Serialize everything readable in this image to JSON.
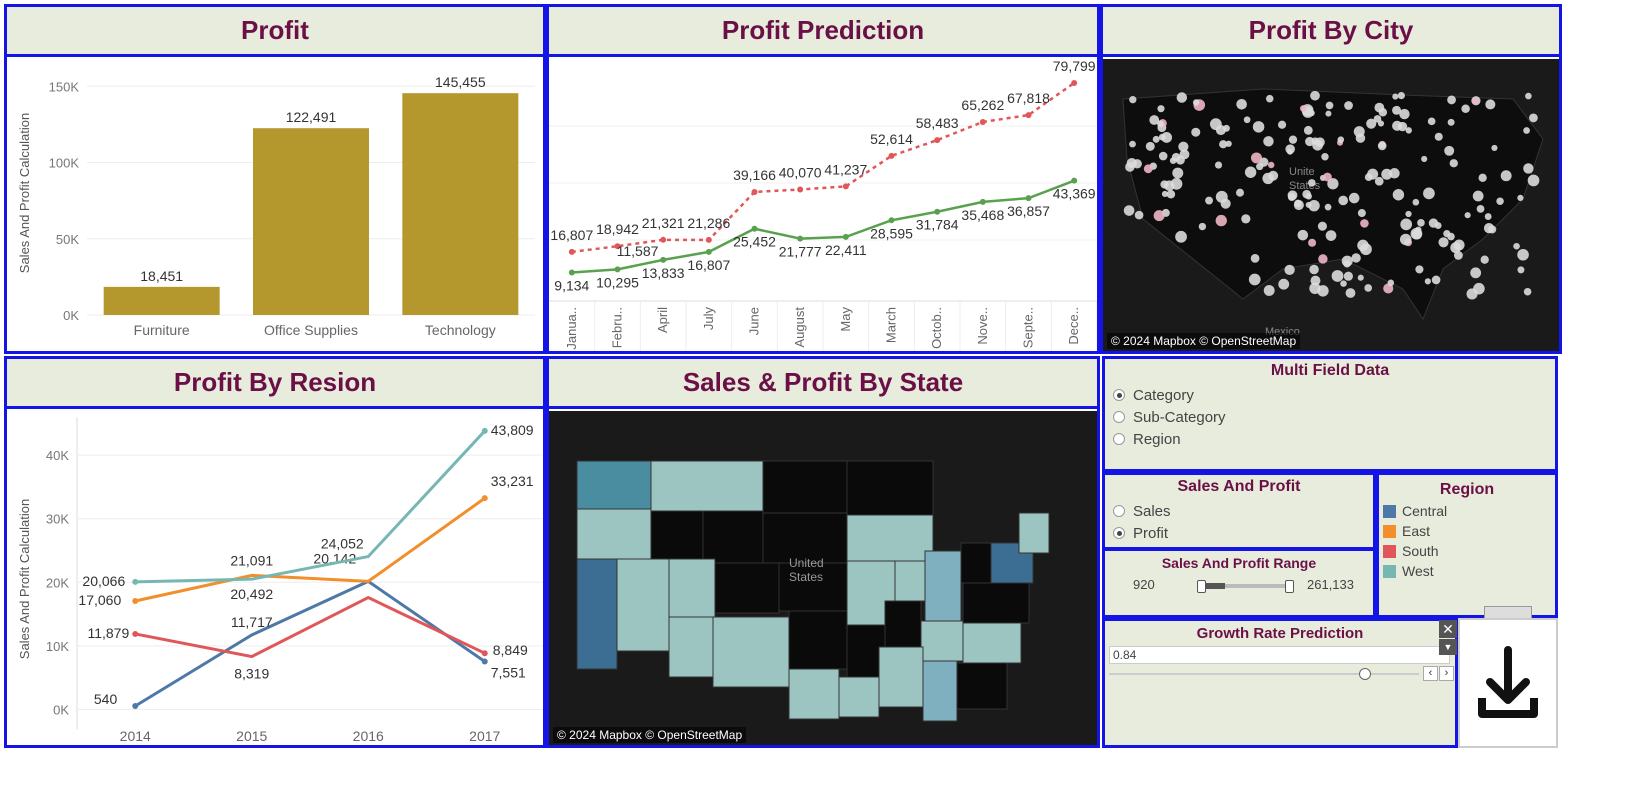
{
  "colors": {
    "border": "#1414e6",
    "title_bg": "#e8ecdd",
    "title_text": "#6b1047",
    "bar": "#b4982d",
    "central": "#4e79a7",
    "east": "#f28e2b",
    "south": "#e15759",
    "west": "#76b7b2",
    "pred_actual": "#59a14f",
    "pred_forecast": "#e15759"
  },
  "profit_panel": {
    "title": "Profit"
  },
  "prediction_panel": {
    "title": "Profit Prediction"
  },
  "city_panel": {
    "title": "Profit By City",
    "attribution": "© 2024 Mapbox © OpenStreetMap",
    "map_labels": [
      "Unite",
      "States",
      "Mexico"
    ]
  },
  "region_panel": {
    "title": "Profit By Resion"
  },
  "state_panel": {
    "title": "Sales & Profit By State",
    "attribution": "© 2024 Mapbox © OpenStreetMap",
    "map_labels": [
      "United",
      "States"
    ]
  },
  "multi_field": {
    "title": "Multi Field Data",
    "options": [
      "Category",
      "Sub-Category",
      "Region"
    ],
    "selected": "Category"
  },
  "sales_profit": {
    "title": "Sales And Profit",
    "options": [
      "Sales",
      "Profit"
    ],
    "selected": "Profit"
  },
  "region_legend": {
    "title": "Region",
    "items": [
      {
        "label": "Central",
        "color": "#4e79a7"
      },
      {
        "label": "East",
        "color": "#f28e2b"
      },
      {
        "label": "South",
        "color": "#e15759"
      },
      {
        "label": "West",
        "color": "#76b7b2"
      }
    ]
  },
  "range": {
    "title": "Sales And Profit Range",
    "min": "920",
    "max": "261,133"
  },
  "growth": {
    "title": "Growth Rate Prediction",
    "value": "0.84"
  },
  "download": {
    "icon": "download-icon"
  },
  "chart_data": [
    {
      "type": "bar",
      "ylabel": "Sales And Profit Calculation",
      "categories": [
        "Furniture",
        "Office Supplies",
        "Technology"
      ],
      "values": [
        18451,
        122491,
        145455
      ],
      "value_labels": [
        "18,451",
        "122,491",
        "145,455"
      ],
      "yticks": [
        0,
        50000,
        100000,
        150000
      ],
      "ytick_labels": [
        "0K",
        "50K",
        "100K",
        "150K"
      ],
      "ylim": [
        0,
        160000
      ]
    },
    {
      "type": "line",
      "categories": [
        "Janua..",
        "Febru..",
        "April",
        "July",
        "June",
        "August",
        "May",
        "March",
        "Octob..",
        "Nove..",
        "Septe..",
        "Dece.."
      ],
      "series": [
        {
          "values": [
            9134,
            10295,
            13833,
            16807,
            25452,
            21777,
            22411,
            28595,
            31784,
            35468,
            36857,
            43369
          ],
          "labels": [
            "9,134",
            "10,295",
            "13,833",
            "16,807",
            "25,452",
            "21,777",
            "22,411",
            "28,595",
            "31,784",
            "35,468",
            "36,857",
            "43,369"
          ]
        },
        {
          "values": [
            16807,
            18942,
            21321,
            21286,
            39166,
            40070,
            41237,
            52614,
            58483,
            65262,
            67818,
            79799
          ],
          "labels": [
            "16,807",
            "18,942",
            "21,321",
            "21,286",
            "39,166",
            "40,070",
            "41,237",
            "52,614",
            "58,483",
            "65,262",
            "67,818",
            "79,799"
          ]
        }
      ],
      "extra_labels": [
        "11,587"
      ],
      "ylim": [
        0,
        85000
      ]
    },
    {
      "type": "line",
      "ylabel": "Sales And Profit Calculation",
      "categories": [
        "2014",
        "2015",
        "2016",
        "2017"
      ],
      "series": [
        {
          "name": "Central",
          "values": [
            540,
            11717,
            20142,
            7551
          ],
          "labels": [
            "540",
            "11,717",
            "20,142",
            "7,551"
          ]
        },
        {
          "name": "East",
          "values": [
            17060,
            21091,
            20142,
            33231
          ],
          "labels": [
            "17,060",
            "21,091",
            "",
            "33,231"
          ]
        },
        {
          "name": "South",
          "values": [
            11879,
            8319,
            17600,
            8849
          ],
          "labels": [
            "11,879",
            "8,319",
            "",
            "8,849"
          ]
        },
        {
          "name": "West",
          "values": [
            20066,
            20492,
            24052,
            43809
          ],
          "labels": [
            "20,066",
            "20,492",
            "24,052",
            "43,809"
          ]
        }
      ],
      "yticks": [
        0,
        10000,
        20000,
        30000,
        40000
      ],
      "ytick_labels": [
        "0K",
        "10K",
        "20K",
        "30K",
        "40K"
      ],
      "ylim": [
        -1500,
        46000
      ]
    }
  ]
}
